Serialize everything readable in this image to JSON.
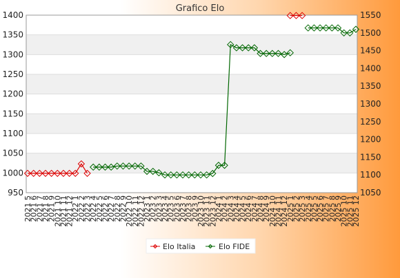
{
  "chart_data": {
    "type": "line",
    "title": "Grafico Elo",
    "xlabel": "",
    "ylabel": "",
    "categories": [
      "2021 5",
      "2021 6",
      "2021 7",
      "2021 8",
      "2021 9",
      "2021 10",
      "2021 11",
      "2021 12",
      "2022 1",
      "2022 2",
      "2022 3",
      "2022 4",
      "2022 5",
      "2022 6",
      "2022 7",
      "2022 8",
      "2022 9",
      "2022 10",
      "2022 11",
      "2022 12",
      "2023 1",
      "2023 2",
      "2023 3",
      "2023 4",
      "2023 5",
      "2023 6",
      "2023 7",
      "2023 8",
      "2023 9",
      "2023 10",
      "2023 11",
      "2023 12",
      "2024 1",
      "2024 2",
      "2024 3",
      "2024 4",
      "2024 5",
      "2024 6",
      "2024 7",
      "2024 8",
      "2024 9",
      "2024 10",
      "2024 11",
      "2024 12",
      "2025 1",
      "2025 2",
      "2025 3",
      "2025 4",
      "2025 5",
      "2025 6",
      "2025 7",
      "2025 8",
      "2025 9",
      "2025 10",
      "2025 11",
      "2025 12"
    ],
    "y_left": {
      "min": 950,
      "max": 1400,
      "ticks": [
        950,
        1000,
        1050,
        1100,
        1150,
        1200,
        1250,
        1300,
        1350,
        1400
      ]
    },
    "y_right": {
      "min": 1050,
      "max": 1550,
      "ticks": [
        1050,
        1100,
        1150,
        1200,
        1250,
        1300,
        1350,
        1400,
        1450,
        1500,
        1550
      ]
    },
    "grid": true,
    "legend_position": "bottom",
    "series": [
      {
        "name": "Elo Italia",
        "axis": "left",
        "color": "#dd0000",
        "values": [
          999,
          999,
          999,
          999,
          999,
          999,
          999,
          999,
          999,
          1023,
          999,
          null,
          null,
          null,
          null,
          null,
          null,
          null,
          null,
          null,
          null,
          null,
          null,
          null,
          null,
          null,
          null,
          null,
          null,
          null,
          null,
          null,
          null,
          null,
          null,
          null,
          null,
          null,
          null,
          null,
          null,
          null,
          null,
          null,
          1399,
          1399,
          1399,
          null,
          null,
          null,
          null,
          null,
          null,
          null,
          null,
          null
        ]
      },
      {
        "name": "Elo FIDE",
        "axis": "right",
        "color": "#006600",
        "values": [
          null,
          null,
          null,
          null,
          null,
          null,
          null,
          null,
          null,
          null,
          null,
          1122,
          1122,
          1122,
          1122,
          1125,
          1125,
          1125,
          1125,
          1125,
          1110,
          1110,
          1106,
          1100,
          1100,
          1100,
          1100,
          1100,
          1100,
          1100,
          1100,
          1104,
          1127,
          1127,
          1467,
          1458,
          1458,
          1458,
          1458,
          1442,
          1442,
          1442,
          1442,
          1439,
          1444,
          null,
          null,
          1514,
          1514,
          1514,
          1514,
          1514,
          1514,
          1500,
          1500,
          1510
        ]
      }
    ]
  }
}
